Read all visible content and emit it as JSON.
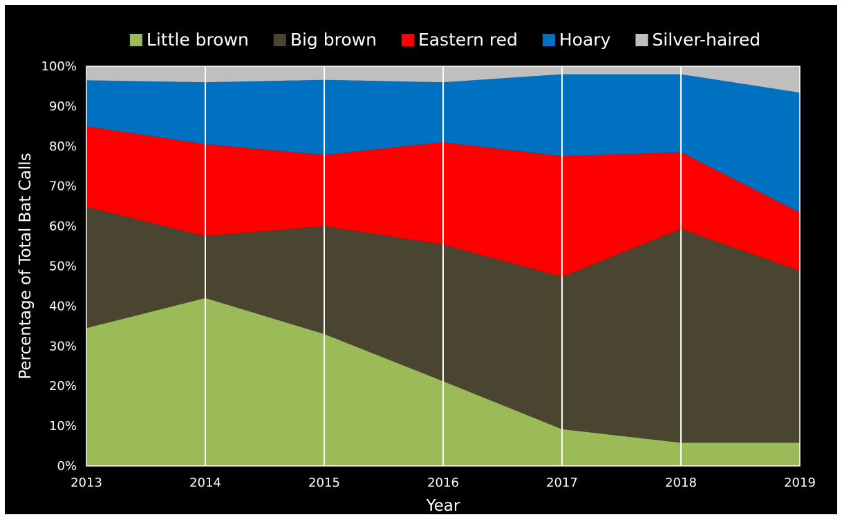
{
  "chart_data": {
    "type": "area",
    "stacked": true,
    "title": "",
    "xlabel": "Year",
    "ylabel": "Percentage of Total Bat Calls",
    "x": [
      "2013",
      "2014",
      "2015",
      "2016",
      "2017",
      "2018",
      "2019"
    ],
    "yticks": [
      "0%",
      "10%",
      "20%",
      "30%",
      "40%",
      "50%",
      "60%",
      "70%",
      "80%",
      "90%",
      "100%"
    ],
    "ylim": [
      0,
      100
    ],
    "legend_position": "top",
    "grid": "vertical lines at each year",
    "background": "#000000",
    "series": [
      {
        "name": "Little brown",
        "color": "#9bbb59",
        "values": [
          34.5,
          42.0,
          33.0,
          21.2,
          9.2,
          5.8,
          5.8
        ]
      },
      {
        "name": "Big brown",
        "color": "#4a4530",
        "values": [
          30.3,
          15.5,
          27.0,
          34.2,
          38.1,
          53.5,
          43.0
        ]
      },
      {
        "name": "Eastern red",
        "color": "#ff0000",
        "values": [
          20.2,
          23.0,
          17.8,
          25.6,
          30.2,
          19.2,
          14.6
        ]
      },
      {
        "name": "Hoary",
        "color": "#0070c0",
        "values": [
          11.5,
          15.5,
          18.8,
          15.0,
          20.5,
          19.5,
          30.0
        ]
      },
      {
        "name": "Silver-haired",
        "color": "#bfbfbf",
        "values": [
          3.5,
          4.0,
          3.4,
          4.0,
          2.0,
          2.0,
          6.6
        ]
      }
    ]
  }
}
